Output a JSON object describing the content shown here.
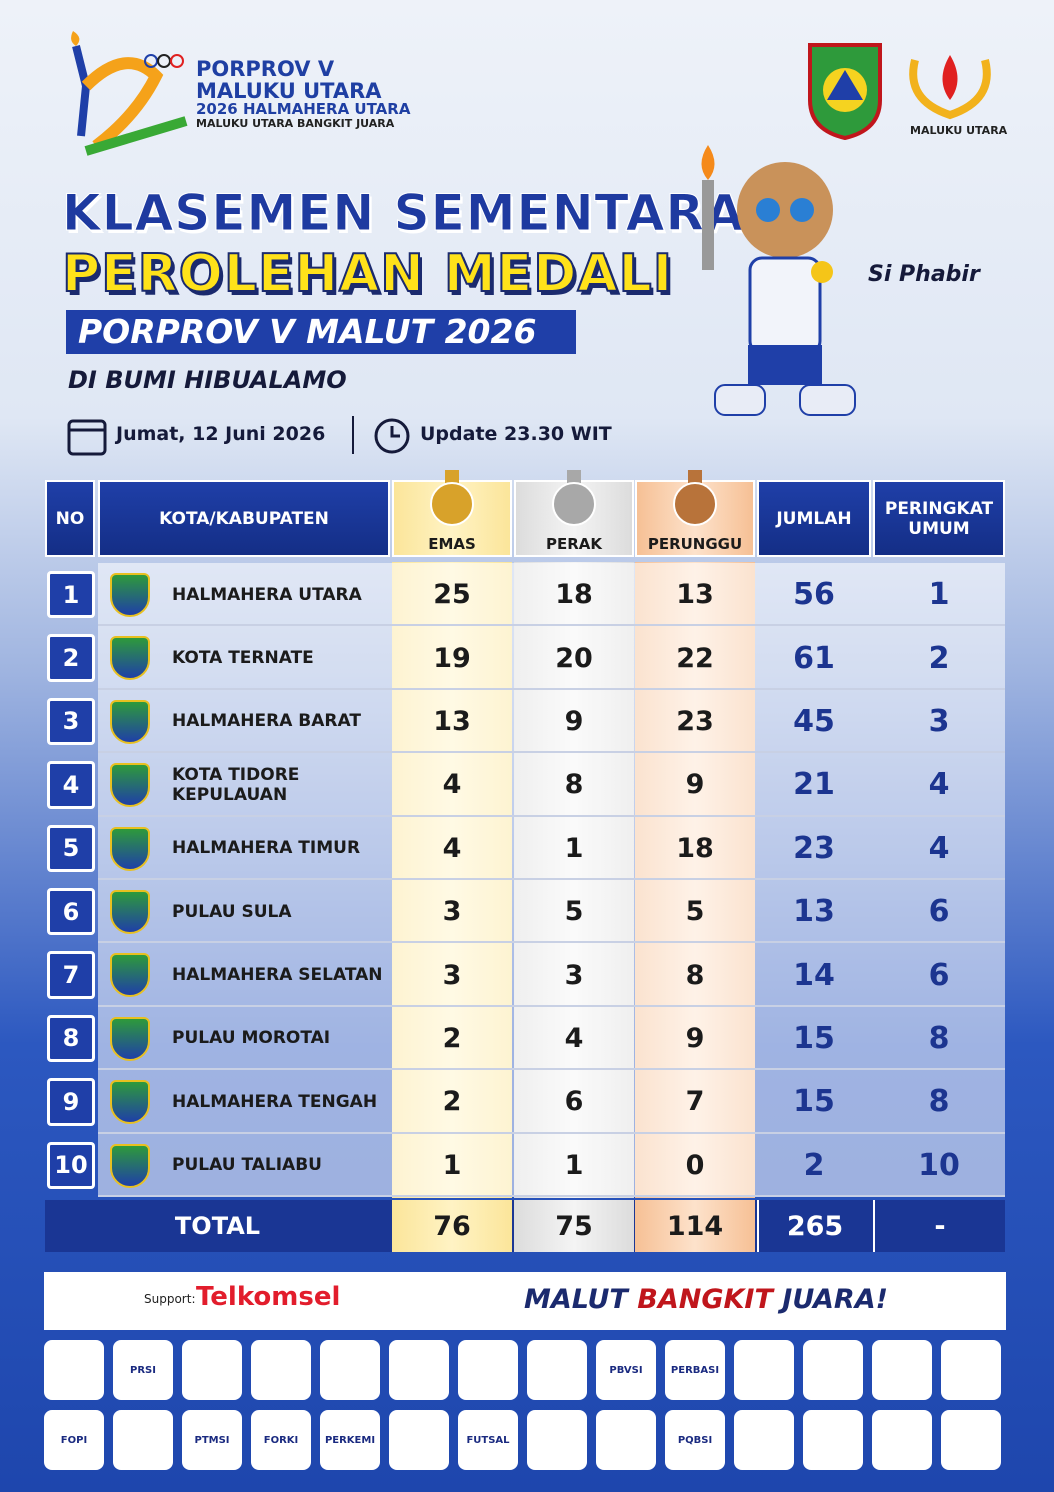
{
  "header": {
    "logo_lines": [
      "PORPROV V",
      "MALUKU UTARA",
      "2026 HALMAHERA UTARA",
      "MALUKU UTARA BANGKIT JUARA"
    ],
    "right_logo": "MALUKU UTARA",
    "title1": "KLASEMEN SEMENTARA",
    "title2": "PEROLEHAN MEDALI",
    "subtitle": "PORPROV V MALUT 2026",
    "tagline": "DI BUMI HIBUALAMO",
    "date": "Jumat, 12 Juni 2026",
    "update": "Update 23.30 WIT",
    "mascot": "Si Phabir"
  },
  "table": {
    "columns": [
      "NO",
      "KOTA/KABUPATEN",
      "EMAS",
      "PERAK",
      "PERUNGGU",
      "JUMLAH",
      "PERINGKAT UMUM"
    ],
    "rows": [
      [
        1,
        "HALMAHERA UTARA",
        25,
        18,
        13,
        56,
        1
      ],
      [
        2,
        "KOTA TERNATE",
        19,
        20,
        22,
        61,
        2
      ],
      [
        3,
        "HALMAHERA BARAT",
        13,
        9,
        23,
        45,
        3
      ],
      [
        4,
        "KOTA TIDORE KEPULAUAN",
        4,
        8,
        9,
        21,
        4
      ],
      [
        5,
        "HALMAHERA TIMUR",
        4,
        1,
        18,
        23,
        4
      ],
      [
        6,
        "PULAU SULA",
        3,
        5,
        5,
        13,
        6
      ],
      [
        7,
        "HALMAHERA SELATAN",
        3,
        3,
        8,
        14,
        6
      ],
      [
        8,
        "PULAU MOROTAI",
        2,
        4,
        9,
        15,
        8
      ],
      [
        9,
        "HALMAHERA TENGAH",
        2,
        6,
        7,
        15,
        8
      ],
      [
        10,
        "PULAU TALIABU",
        1,
        1,
        0,
        2,
        10
      ]
    ],
    "total": [
      "TOTAL",
      76,
      75,
      114,
      265,
      "-"
    ]
  },
  "footer": {
    "support": "Support:",
    "sponsor": "Telkomsel",
    "slogan": [
      "MALUT",
      "BANGKIT",
      "JUARA!"
    ],
    "logos": [
      [
        null,
        "PRSI",
        null,
        null,
        null,
        null,
        null,
        null,
        "PBVSI",
        "PERBASI",
        null,
        null,
        null,
        null
      ],
      [
        "FOPI",
        null,
        "PTMSI",
        "FORKI",
        "PERKEMI",
        null,
        "FUTSAL",
        null,
        null,
        "PQBSI",
        null,
        null,
        null,
        null
      ]
    ]
  }
}
